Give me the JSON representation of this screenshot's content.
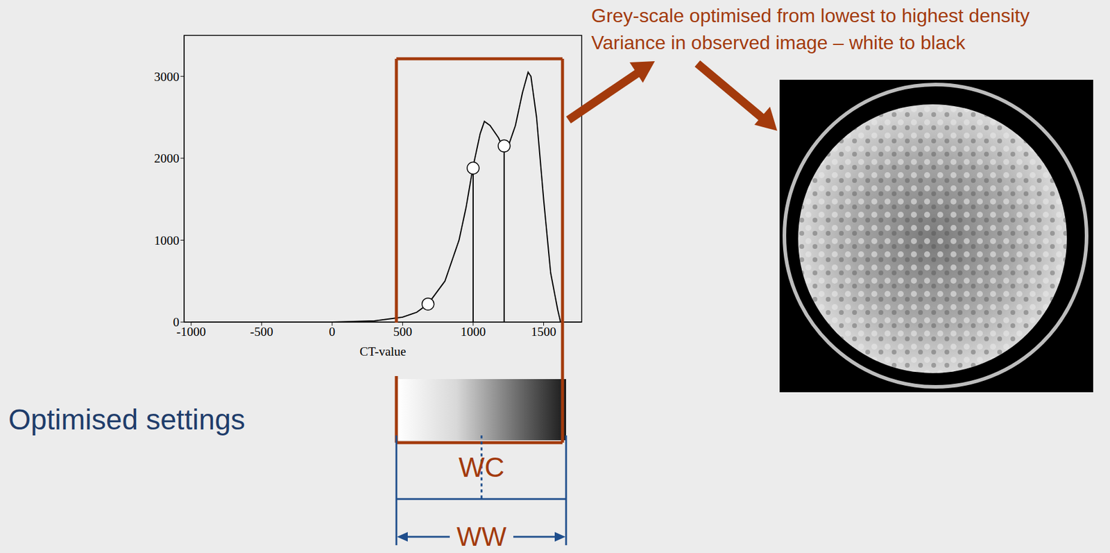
{
  "chart_data": {
    "type": "line",
    "x": [
      -1000,
      0,
      300,
      500,
      600,
      680,
      800,
      900,
      950,
      1000,
      1050,
      1080,
      1120,
      1180,
      1220,
      1250,
      1300,
      1350,
      1390,
      1410,
      1450,
      1500,
      1550,
      1600,
      1620,
      1770
    ],
    "values": [
      0,
      0,
      15,
      60,
      120,
      220,
      500,
      1000,
      1400,
      1900,
      2300,
      2450,
      2400,
      2250,
      2100,
      2150,
      2400,
      2800,
      3050,
      3000,
      2500,
      1500,
      600,
      150,
      0,
      0
    ],
    "color": "#000000",
    "xlim": [
      -1050,
      1770
    ],
    "xticks": [
      -1000,
      -500,
      0,
      500,
      1000,
      1500
    ],
    "ylim": [
      0,
      3500
    ],
    "yticks": [
      0,
      1000,
      2000,
      3000
    ],
    "x_label": "CT-value",
    "markers": [
      {
        "x": 680,
        "y": 220,
        "stem": false
      },
      {
        "x": 1000,
        "y": 1880,
        "stem": true
      },
      {
        "x": 1220,
        "y": 2150,
        "stem": true
      }
    ]
  },
  "slide": {
    "heading": "Optimised settings",
    "note": [
      "Grey-scale optimised from lowest to highest density",
      "Variance in observed image – white to black"
    ],
    "center_label": "WC",
    "width_label": "WW"
  }
}
